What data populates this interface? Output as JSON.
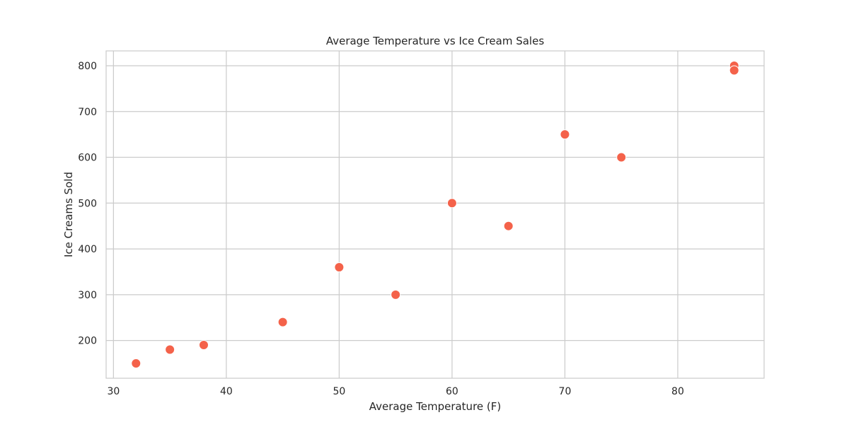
{
  "chart_data": {
    "type": "scatter",
    "title": "Average Temperature vs Ice Cream Sales",
    "xlabel": "Average Temperature (F)",
    "ylabel": "Ice Creams Sold",
    "xlim": [
      29.35,
      87.65
    ],
    "ylim": [
      117.5,
      832.5
    ],
    "xticks": [
      30,
      40,
      50,
      60,
      70,
      80
    ],
    "yticks": [
      200,
      300,
      400,
      500,
      600,
      700,
      800
    ],
    "grid": true,
    "marker_color": "#f4624a",
    "marker_edge_color": "#ffffff",
    "points": [
      {
        "x": 32,
        "y": 150
      },
      {
        "x": 35,
        "y": 180
      },
      {
        "x": 38,
        "y": 190
      },
      {
        "x": 45,
        "y": 240
      },
      {
        "x": 50,
        "y": 360
      },
      {
        "x": 55,
        "y": 300
      },
      {
        "x": 60,
        "y": 500
      },
      {
        "x": 65,
        "y": 450
      },
      {
        "x": 70,
        "y": 650
      },
      {
        "x": 75,
        "y": 600
      },
      {
        "x": 85,
        "y": 800
      },
      {
        "x": 85,
        "y": 790
      }
    ]
  }
}
